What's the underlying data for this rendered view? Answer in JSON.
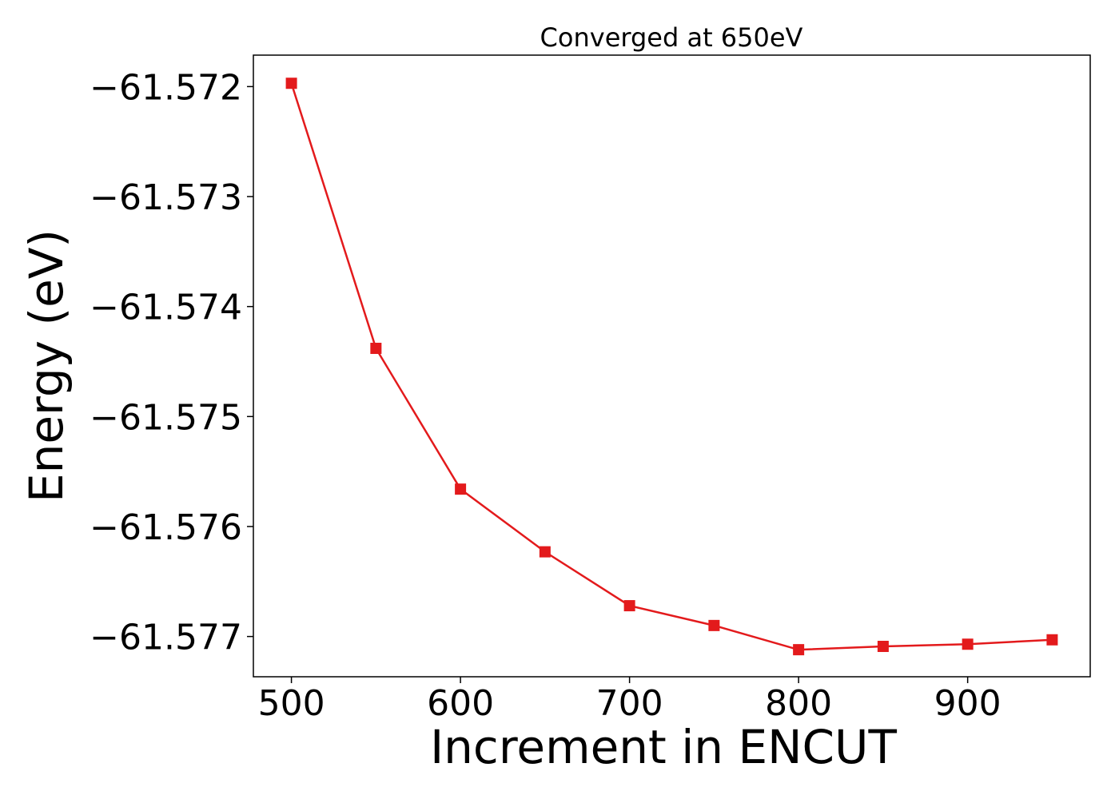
{
  "chart_data": {
    "type": "line",
    "title": "Converged at 650eV",
    "xlabel": "Increment in ENCUT",
    "ylabel": "Energy (eV)",
    "x": [
      500,
      550,
      600,
      650,
      700,
      750,
      800,
      850,
      900,
      950
    ],
    "series": [
      {
        "values": [
          -61.57197,
          -61.57438,
          -61.57566,
          -61.57623,
          -61.57672,
          -61.5769,
          -61.57712,
          -61.57709,
          -61.57707,
          -61.57703
        ],
        "color": "#e31a1c",
        "marker": "square"
      }
    ],
    "xlim": [
      477.5,
      972.5
    ],
    "ylim": [
      -61.577366,
      -61.571714
    ],
    "xticks": [
      500,
      600,
      700,
      800,
      900
    ],
    "xtick_labels": [
      "500",
      "600",
      "700",
      "800",
      "900"
    ],
    "yticks": [
      -61.572,
      -61.573,
      -61.574,
      -61.575,
      -61.576,
      -61.577
    ],
    "ytick_labels": [
      "−61.572",
      "−61.573",
      "−61.574",
      "−61.575",
      "−61.576",
      "−61.577"
    ],
    "grid": false,
    "legend": "none"
  }
}
